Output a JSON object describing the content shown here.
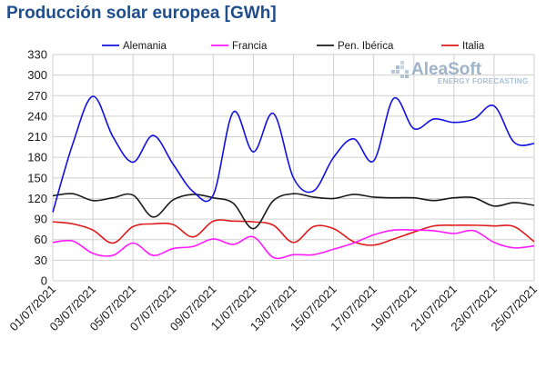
{
  "title": "Producción solar europea [GWh]",
  "logo": {
    "name": "AleaSoft",
    "tagline": "ENERGY FORECASTING"
  },
  "colors": {
    "alemania": "#1010e0",
    "francia": "#ff1aff",
    "iberica": "#1a1a1a",
    "italia": "#e01a1a",
    "grid": "#cfcfcf",
    "logo": "#9fb3c8"
  },
  "chart_data": {
    "type": "line",
    "title": "Producción solar europea [GWh]",
    "xlabel": "",
    "ylabel": "",
    "ylim": [
      0,
      330
    ],
    "yticks": [
      0,
      30,
      60,
      90,
      120,
      150,
      180,
      210,
      240,
      270,
      300,
      330
    ],
    "grid": true,
    "legend_position": "top",
    "x": [
      "01/07/2021",
      "02/07/2021",
      "03/07/2021",
      "04/07/2021",
      "05/07/2021",
      "06/07/2021",
      "07/07/2021",
      "08/07/2021",
      "09/07/2021",
      "10/07/2021",
      "11/07/2021",
      "12/07/2021",
      "13/07/2021",
      "14/07/2021",
      "15/07/2021",
      "16/07/2021",
      "17/07/2021",
      "18/07/2021",
      "19/07/2021",
      "20/07/2021",
      "21/07/2021",
      "22/07/2021",
      "23/07/2021",
      "24/07/2021",
      "25/07/2021"
    ],
    "xtick_labels": [
      "01/07/2021",
      "03/07/2021",
      "05/07/2021",
      "07/07/2021",
      "09/07/2021",
      "11/07/2021",
      "13/07/2021",
      "15/07/2021",
      "17/07/2021",
      "19/07/2021",
      "21/07/2021",
      "23/07/2021",
      "25/07/2021"
    ],
    "series": [
      {
        "name": "Alemania",
        "color": "#1010e0",
        "values": [
          100,
          200,
          269,
          210,
          173,
          212,
          170,
          130,
          125,
          246,
          188,
          244,
          150,
          131,
          180,
          207,
          175,
          266,
          222,
          236,
          231,
          236,
          255,
          202,
          200
        ]
      },
      {
        "name": "Francia",
        "color": "#ff1aff",
        "values": [
          56,
          58,
          40,
          37,
          55,
          37,
          47,
          50,
          61,
          53,
          64,
          34,
          38,
          38,
          46,
          55,
          67,
          74,
          74,
          73,
          69,
          73,
          56,
          48,
          51
        ]
      },
      {
        "name": "Pen. Ibérica",
        "color": "#1a1a1a",
        "values": [
          124,
          127,
          117,
          121,
          125,
          93,
          118,
          126,
          121,
          113,
          76,
          117,
          127,
          122,
          120,
          126,
          122,
          121,
          121,
          117,
          121,
          121,
          109,
          114,
          110
        ]
      },
      {
        "name": "Italia",
        "color": "#e01a1a",
        "values": [
          86,
          83,
          74,
          55,
          79,
          83,
          82,
          64,
          87,
          87,
          86,
          81,
          56,
          79,
          76,
          57,
          52,
          61,
          71,
          80,
          81,
          81,
          80,
          79,
          57
        ]
      }
    ]
  }
}
